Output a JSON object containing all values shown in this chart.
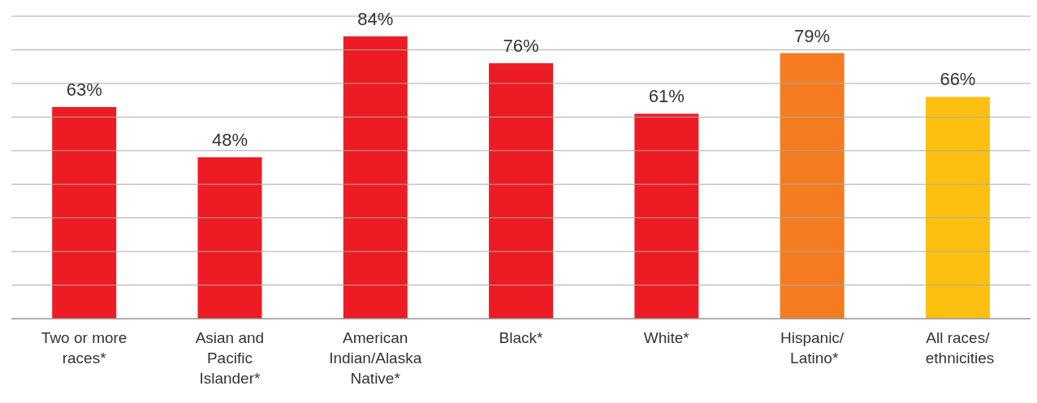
{
  "chart_data": {
    "type": "bar",
    "categories": [
      "Two or more races*",
      "Asian and Pacific Islander*",
      "American Indian/Alaska Native*",
      "Black*",
      "White*",
      "Hispanic/ Latino*",
      "All races/ ethnicities"
    ],
    "values": [
      63,
      48,
      84,
      76,
      61,
      79,
      66
    ],
    "colors": [
      "#ed1c24",
      "#ed1c24",
      "#ed1c24",
      "#ed1c24",
      "#ed1c24",
      "#f47b20",
      "#fdc010"
    ],
    "value_labels": [
      "63%",
      "48%",
      "84%",
      "76%",
      "61%",
      "79%",
      "66%"
    ],
    "ylim": [
      0,
      90
    ],
    "yticks": [
      {
        "value": 0,
        "label": null
      },
      {
        "value": 10,
        "label": null
      },
      {
        "value": 20,
        "label": null
      },
      {
        "value": 30,
        "label": null
      },
      {
        "value": 40,
        "label": null
      },
      {
        "value": 50,
        "label": null
      },
      {
        "value": 60,
        "label": null
      },
      {
        "value": 70,
        "label": null
      },
      {
        "value": 80,
        "label": null
      },
      {
        "value": 90,
        "label": null
      }
    ],
    "grid": "y",
    "tick_labels": "x",
    "legend": false
  }
}
